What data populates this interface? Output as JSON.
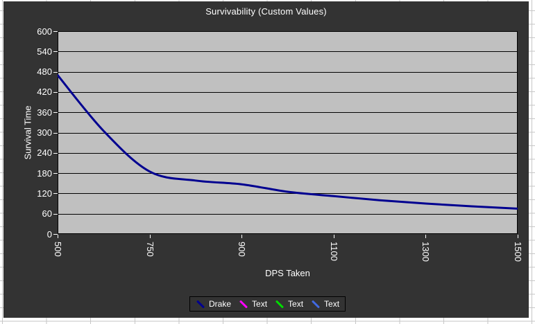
{
  "chart_data": {
    "type": "line",
    "title": "Survivability (Custom Values)",
    "xlabel": "DPS Taken",
    "ylabel": "Survival Time",
    "ylim": [
      0,
      600
    ],
    "ytick_step": 60,
    "yticks": [
      600,
      540,
      480,
      420,
      360,
      300,
      240,
      180,
      120,
      60,
      0
    ],
    "xticks": [
      500,
      750,
      900,
      1100,
      1300,
      1500
    ],
    "x_axis_type": "category (tick labels equally spaced)",
    "grid": "horizontal black gridlines",
    "legend_position": "bottom-center",
    "colors": {
      "chart_background": "#333333",
      "plot_background": "#c0c0c0",
      "gridline": "#000000",
      "text": "#ffffff"
    },
    "series": [
      {
        "name": "Drake",
        "color": "#000090",
        "points": [
          [
            500,
            470
          ],
          [
            625,
            305
          ],
          [
            750,
            185
          ],
          [
            825,
            158
          ],
          [
            900,
            147
          ],
          [
            1000,
            125
          ],
          [
            1100,
            112
          ],
          [
            1200,
            100
          ],
          [
            1300,
            90
          ],
          [
            1400,
            82
          ],
          [
            1500,
            75
          ]
        ]
      },
      {
        "name": "Text",
        "color": "#ff00ff",
        "points": []
      },
      {
        "name": "Text",
        "color": "#00dc00",
        "points": []
      },
      {
        "name": "Text",
        "color": "#4169e1",
        "points": []
      }
    ]
  }
}
